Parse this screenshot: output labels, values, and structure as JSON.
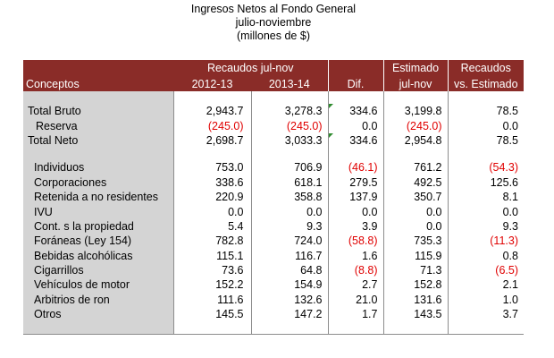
{
  "title": {
    "line1": "Ingresos Netos al Fondo General",
    "line2": "julio-noviembre",
    "line3": "(millones de $)"
  },
  "header": {
    "recaudos_group": "Recaudos jul-nov",
    "estimado_line1": "Estimado",
    "estimado_line2": "jul-nov",
    "recaudos_vs_line1": "Recaudos",
    "recaudos_vs_line2": "vs. Estimado",
    "conceptos": "Conceptos",
    "year1": "2012-13",
    "year2": "2013-14",
    "dif": "Dif."
  },
  "rows": [
    {
      "concept": "Total Bruto",
      "v1": "2,943.7",
      "v2": "3,278.3",
      "dif": "334.6",
      "est": "3,199.8",
      "vs": "78.5"
    },
    {
      "concept": "Reserva",
      "v1": "(245.0)",
      "v2": "(245.0)",
      "dif": "0.0",
      "est": "(245.0)",
      "vs": "0.0"
    },
    {
      "concept": "Total Neto",
      "v1": "2,698.7",
      "v2": "3,033.3",
      "dif": "334.6",
      "est": "2,954.8",
      "vs": "78.5"
    },
    {
      "concept": "Individuos",
      "v1": "753.0",
      "v2": "706.9",
      "dif": "(46.1)",
      "est": "761.2",
      "vs": "(54.3)"
    },
    {
      "concept": "Corporaciones",
      "v1": "338.6",
      "v2": "618.1",
      "dif": "279.5",
      "est": "492.5",
      "vs": "125.6"
    },
    {
      "concept": "Retenida a no residentes",
      "v1": "220.9",
      "v2": "358.8",
      "dif": "137.9",
      "est": "350.7",
      "vs": "8.1"
    },
    {
      "concept": "IVU",
      "v1": "0.0",
      "v2": "0.0",
      "dif": "0.0",
      "est": "0.0",
      "vs": "0.0"
    },
    {
      "concept": "Cont. s la propiedad",
      "v1": "5.4",
      "v2": "9.3",
      "dif": "3.9",
      "est": "0.0",
      "vs": "9.3"
    },
    {
      "concept": "Foráneas (Ley 154)",
      "v1": "782.8",
      "v2": "724.0",
      "dif": "(58.8)",
      "est": "735.3",
      "vs": "(11.3)"
    },
    {
      "concept": "Bebidas alcohólicas",
      "v1": "115.1",
      "v2": "116.7",
      "dif": "1.6",
      "est": "115.9",
      "vs": "0.8"
    },
    {
      "concept": "Cigarrillos",
      "v1": "73.6",
      "v2": "64.8",
      "dif": "(8.8)",
      "est": "71.3",
      "vs": "(6.5)"
    },
    {
      "concept": "Vehículos de motor",
      "v1": "152.2",
      "v2": "154.9",
      "dif": "2.7",
      "est": "152.8",
      "vs": "2.1"
    },
    {
      "concept": "Arbitrios de ron",
      "v1": "111.6",
      "v2": "132.6",
      "dif": "21.0",
      "est": "131.6",
      "vs": "1.0"
    },
    {
      "concept": "Otros",
      "v1": "145.5",
      "v2": "147.2",
      "dif": "1.7",
      "est": "143.5",
      "vs": "3.7"
    }
  ],
  "colors": {
    "header_bg": "#8a2c28",
    "concept_bg": "#d4d4d4",
    "negative": "#e00000",
    "flag": "#2e8b2e"
  }
}
